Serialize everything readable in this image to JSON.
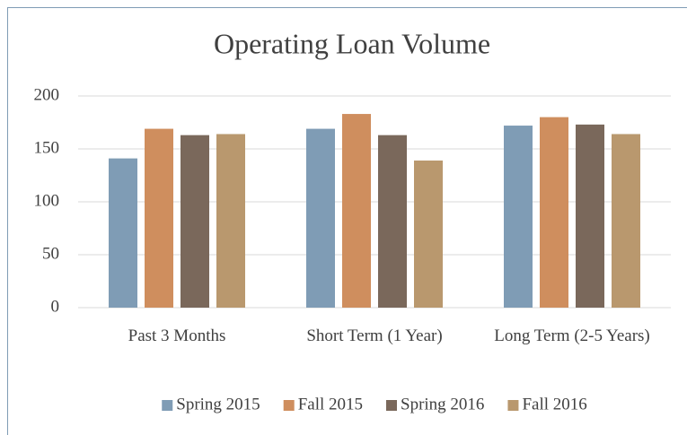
{
  "chart_data": {
    "type": "bar",
    "title": "Operating Loan Volume",
    "categories": [
      "Past 3 Months",
      "Short Term (1 Year)",
      "Long Term (2-5 Years)"
    ],
    "series": [
      {
        "name": "Spring 2015",
        "color": "#7f9cb5",
        "values": [
          141,
          169,
          172
        ]
      },
      {
        "name": "Fall 2015",
        "color": "#cf8e5e",
        "values": [
          169,
          183,
          180
        ]
      },
      {
        "name": "Spring 2016",
        "color": "#7a685b",
        "values": [
          163,
          163,
          173
        ]
      },
      {
        "name": "Fall 2016",
        "color": "#b9986e",
        "values": [
          164,
          139,
          164
        ]
      }
    ],
    "ylim": [
      0,
      200
    ],
    "yticks": [
      0,
      50,
      100,
      150,
      200
    ],
    "grid": true,
    "legend": "bottom"
  }
}
